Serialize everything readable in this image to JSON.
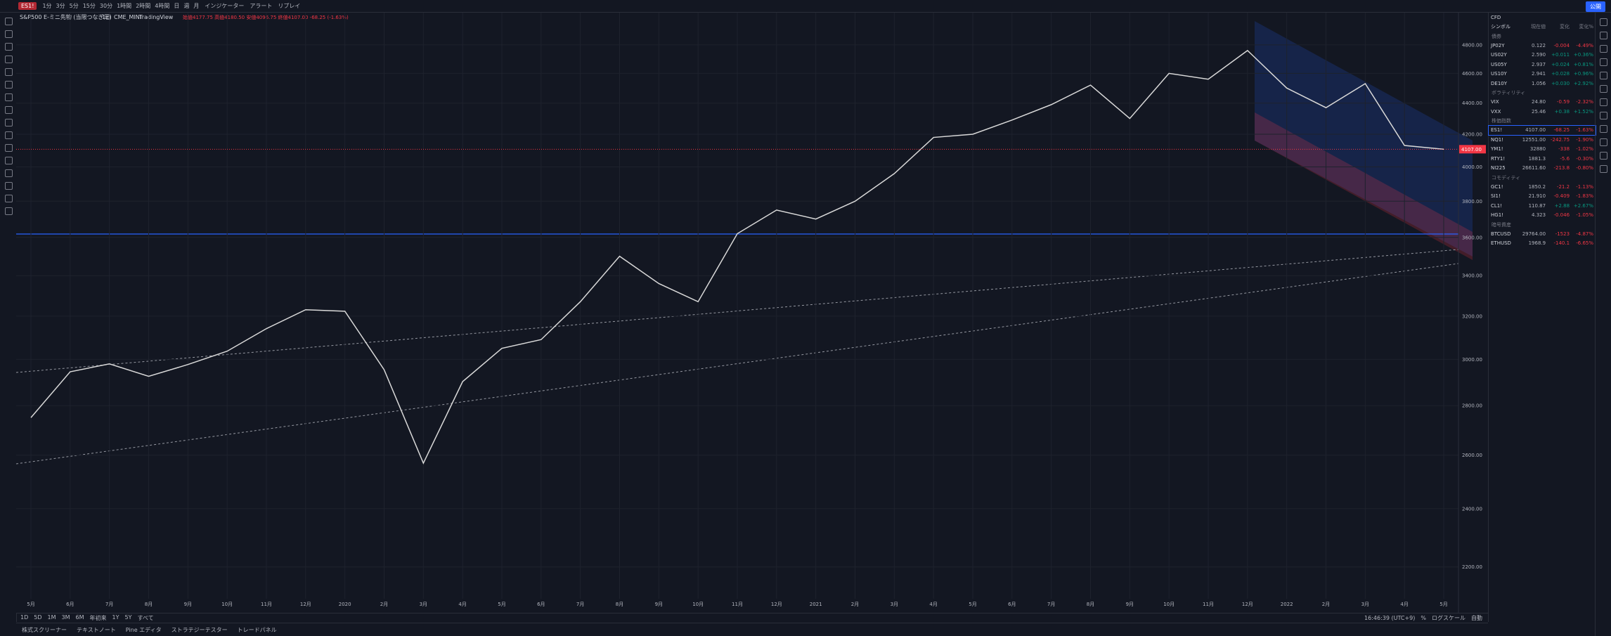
{
  "toolbar": {
    "symbol": "ES1!",
    "intervals": [
      "1分",
      "3分",
      "5分",
      "15分",
      "30分",
      "1時間",
      "2時間",
      "4時間",
      "日",
      "週",
      "月"
    ],
    "indicators": "インジケーター",
    "alert": "アラート",
    "replay": "リプレイ",
    "publish": "公開"
  },
  "chart_data": {
    "type": "line",
    "title": "S&P500 E-ミニ先物 (当限つなぎ足)",
    "interval": "1日",
    "exchange": "CME_MINI",
    "source": "TradingView",
    "ohlc": "始値4177.75 高値4180.50 安値4096.75 終値4107.00 -68.25 (-1.63%)",
    "categories": [
      "5月",
      "6月",
      "7月",
      "8月",
      "9月",
      "10月",
      "11月",
      "12月",
      "2020",
      "2月",
      "3月",
      "4月",
      "5月",
      "6月",
      "7月",
      "8月",
      "9月",
      "10月",
      "11月",
      "12月",
      "2021",
      "2月",
      "3月",
      "4月",
      "5月",
      "6月",
      "7月",
      "8月",
      "9月",
      "10月",
      "11月",
      "12月",
      "2022",
      "2月",
      "3月",
      "4月",
      "5月"
    ],
    "series": [
      {
        "name": "ES1!",
        "color": "#d9d9d9",
        "values": [
          2750,
          2945,
          2980,
          2925,
          2977,
          3037,
          3141,
          3231,
          3224,
          2954,
          2569,
          2902,
          3050,
          3090,
          3270,
          3500,
          3360,
          3270,
          3620,
          3750,
          3700,
          3800,
          3960,
          4180,
          4200,
          4290,
          4390,
          4520,
          4300,
          4600,
          4560,
          4760,
          4500,
          4370,
          4530,
          4130,
          4107
        ]
      }
    ],
    "ylim": [
      2100,
      5000
    ],
    "log_scale": true,
    "grid": true,
    "yticks": [
      {
        "value": 2200,
        "label": "2200.00"
      },
      {
        "value": 2400,
        "label": "2400.00"
      },
      {
        "value": 2600,
        "label": "2600.00"
      },
      {
        "value": 2800,
        "label": "2800.00"
      },
      {
        "value": 3000,
        "label": "3000.00"
      },
      {
        "value": 3200,
        "label": "3200.00"
      },
      {
        "value": 3400,
        "label": "3400.00"
      },
      {
        "value": 3600,
        "label": "3600.00"
      },
      {
        "value": 3800,
        "label": "3800.00"
      },
      {
        "value": 4000,
        "label": "4000.00"
      },
      {
        "value": 4200,
        "label": "4200.00"
      },
      {
        "value": 4400,
        "label": "4400.00"
      },
      {
        "value": 4600,
        "label": "4600.00"
      },
      {
        "value": 4800,
        "label": "4800.00"
      }
    ],
    "last_price": {
      "value": 4107,
      "label": "4107.00"
    }
  },
  "watchlist": {
    "name": "CFD",
    "columns": [
      "シンボル",
      "現在値",
      "変化",
      "変化%"
    ],
    "sections": [
      {
        "name": "債券",
        "rows": [
          [
            "JP02Y",
            "0.122",
            "-0.004",
            "-4.49%"
          ],
          [
            "US02Y",
            "2.590",
            "+0.011",
            "+0.36%"
          ],
          [
            "US05Y",
            "2.937",
            "+0.024",
            "+0.81%"
          ],
          [
            "US10Y",
            "2.941",
            "+0.028",
            "+0.96%"
          ],
          [
            "DE10Y",
            "1.056",
            "+0.030",
            "+2.92%"
          ]
        ]
      },
      {
        "name": "ボラティリティ",
        "rows": [
          [
            "VIX",
            "24.80",
            "-0.59",
            "-2.32%"
          ],
          [
            "VXX",
            "25.46",
            "+0.38",
            "+1.52%"
          ]
        ]
      },
      {
        "name": "株価指数",
        "rows": [
          [
            "ES1!",
            "4107.00",
            "-68.25",
            "-1.63%"
          ],
          [
            "NQ1!",
            "12551.00",
            "-242.75",
            "-1.90%"
          ],
          [
            "YM1!",
            "32880",
            "-338",
            "-1.02%"
          ],
          [
            "RTY1!",
            "1881.3",
            "-5.6",
            "-0.30%"
          ],
          [
            "NI225",
            "26611.60",
            "-213.8",
            "-0.80%"
          ]
        ]
      },
      {
        "name": "コモディティ",
        "rows": [
          [
            "GC1!",
            "1850.2",
            "-21.2",
            "-1.13%"
          ],
          [
            "SI1!",
            "21.910",
            "-0.409",
            "-1.83%"
          ],
          [
            "CL1!",
            "110.87",
            "+2.88",
            "+2.67%"
          ],
          [
            "HG1!",
            "4.323",
            "-0.046",
            "-1.05%"
          ]
        ]
      },
      {
        "name": "暗号資産",
        "rows": [
          [
            "BTCUSD",
            "29764.00",
            "-1523",
            "-4.87%"
          ],
          [
            "ETHUSD",
            "1968.9",
            "-140.1",
            "-6.65%"
          ]
        ]
      }
    ]
  },
  "bottom": {
    "ranges": [
      "1D",
      "5D",
      "1M",
      "3M",
      "6M",
      "年初来",
      "1Y",
      "5Y",
      "すべて"
    ],
    "clock": "16:46:39 (UTC+9)",
    "percent": "%",
    "log": "ログスケール",
    "auto": "自動",
    "tabs": [
      "株式スクリーナー",
      "テキストノート",
      "Pine エディタ",
      "ストラテジーテスター",
      "トレードパネル"
    ]
  }
}
